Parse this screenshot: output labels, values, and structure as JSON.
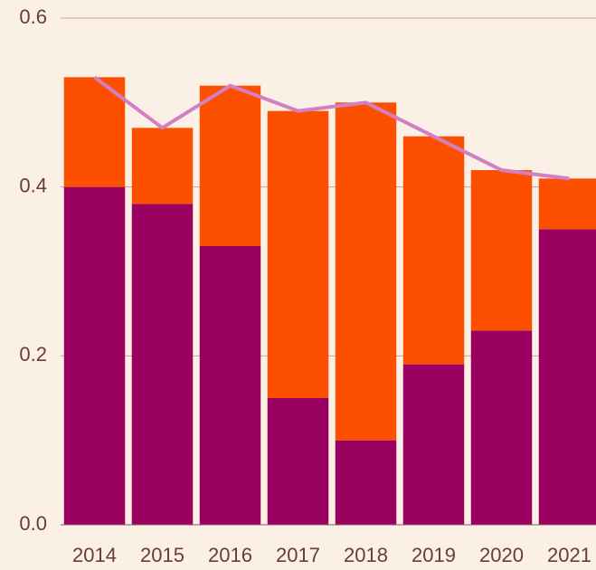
{
  "chart_data": {
    "type": "bar",
    "stacked": true,
    "categories": [
      "2014",
      "2015",
      "2016",
      "2017",
      "2018",
      "2019",
      "2020",
      "2021"
    ],
    "series": [
      {
        "color": "#990060",
        "values": [
          0.4,
          0.38,
          0.33,
          0.15,
          0.1,
          0.19,
          0.23,
          0.35
        ]
      },
      {
        "color": "#fc5000",
        "values": [
          0.13,
          0.09,
          0.19,
          0.34,
          0.4,
          0.27,
          0.19,
          0.06
        ]
      },
      {
        "type": "line",
        "color": "#d27fc4",
        "values": [
          0.53,
          0.47,
          0.52,
          0.49,
          0.5,
          0.46,
          0.42,
          0.41
        ]
      }
    ],
    "ylim": [
      0,
      0.6
    ],
    "yticks": [
      {
        "value": 0,
        "label": "0.0"
      },
      0.2,
      0.4,
      0.6
    ],
    "grid": true
  }
}
